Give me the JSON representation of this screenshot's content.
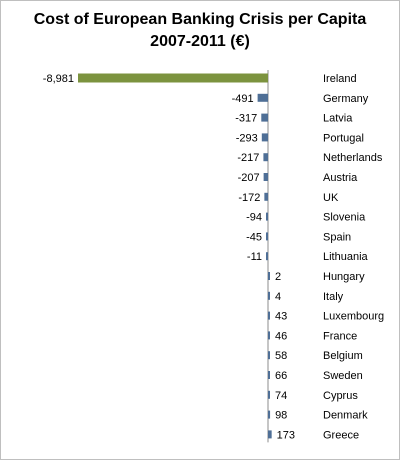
{
  "chart_data": {
    "type": "bar",
    "orientation": "horizontal",
    "title": "Cost of European Banking Crisis per Capita",
    "subtitle": "2007-2011 (€)",
    "categories": [
      "Ireland",
      "Germany",
      "Latvia",
      "Portugal",
      "Netherlands",
      "Austria",
      "UK",
      "Slovenia",
      "Spain",
      "Lithuania",
      "Hungary",
      "Italy",
      "Luxembourg",
      "France",
      "Belgium",
      "Sweden",
      "Cyprus",
      "Denmark",
      "Greece"
    ],
    "values": [
      -8981,
      -491,
      -317,
      -293,
      -217,
      -207,
      -172,
      -94,
      -45,
      -11,
      2,
      4,
      43,
      46,
      58,
      66,
      74,
      98,
      173
    ],
    "value_labels": [
      "-8,981",
      "-491",
      "-317",
      "-293",
      "-217",
      "-207",
      "-172",
      "-94",
      "-45",
      "-11",
      "2",
      "4",
      "43",
      "46",
      "58",
      "66",
      "74",
      "98",
      "173"
    ],
    "highlight_category": "Ireland",
    "colors": {
      "bar": "#4f6f96",
      "highlight": "#7c933f",
      "axis": "#8c8c8c",
      "text": "#000000"
    },
    "grid": false,
    "legend": "none"
  }
}
